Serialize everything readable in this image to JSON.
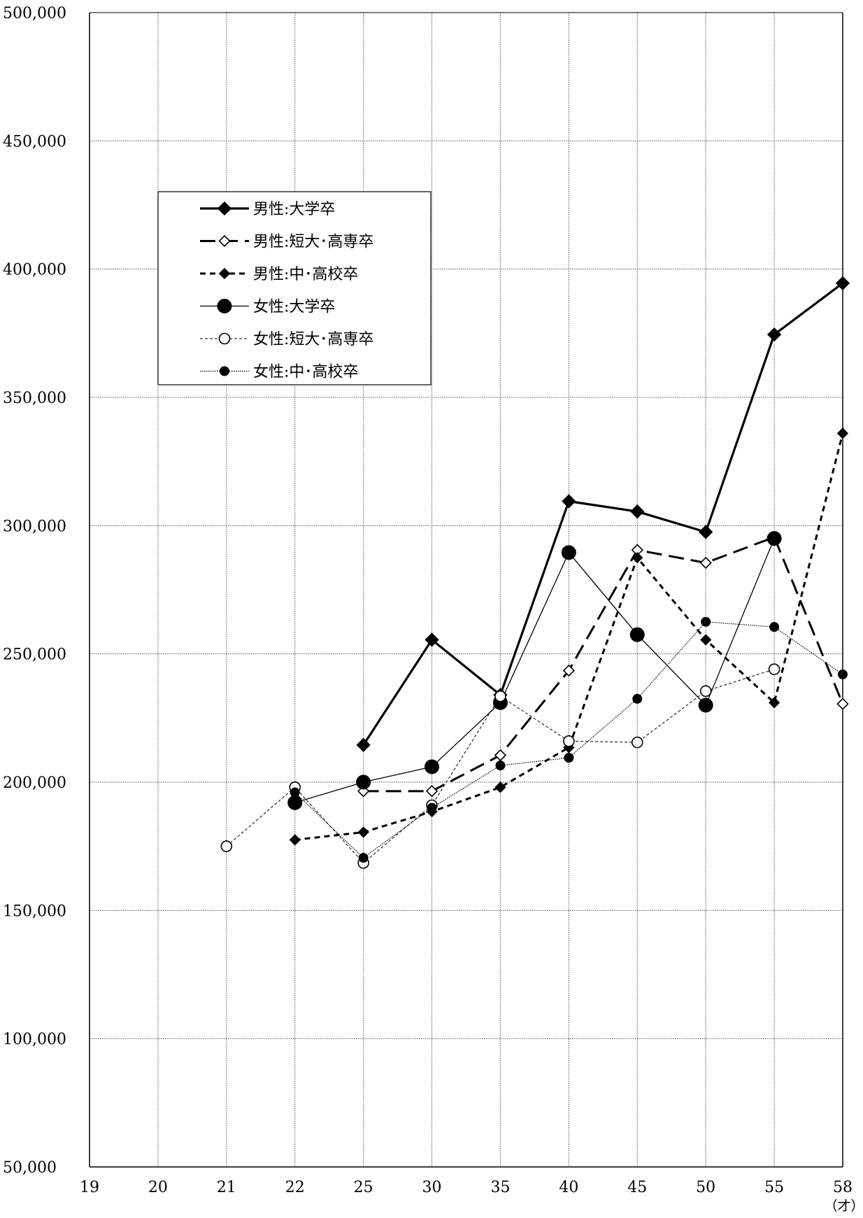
{
  "chart_data": {
    "type": "line",
    "title": "",
    "xlabel": "",
    "ylabel": "",
    "x_unit": "（才）",
    "categories": [
      "19",
      "20",
      "21",
      "22",
      "25",
      "30",
      "35",
      "40",
      "45",
      "50",
      "55",
      "58"
    ],
    "ylim": [
      50000,
      500000
    ],
    "yticks": [
      50000,
      100000,
      150000,
      200000,
      250000,
      300000,
      350000,
      400000,
      450000,
      500000
    ],
    "ytick_labels": [
      "50,000",
      "100,000",
      "150,000",
      "200,000",
      "250,000",
      "300,000",
      "350,000",
      "400,000",
      "450,000",
      "500,000"
    ],
    "grid": true,
    "legend_position": "upper-left",
    "series": [
      {
        "name": "男性:大学卒",
        "line": "solid-thick",
        "marker": "diamond-filled",
        "color": "#000000",
        "values": [
          null,
          null,
          null,
          null,
          214500,
          255500,
          234000,
          309500,
          305500,
          297500,
          374500,
          394500
        ]
      },
      {
        "name": "男性:短大･高専卒",
        "line": "long-dash",
        "marker": "diamond-open",
        "color": "#000000",
        "values": [
          null,
          null,
          null,
          null,
          196500,
          196500,
          210500,
          243500,
          290500,
          285500,
          295500,
          230500
        ]
      },
      {
        "name": "男性:中･高校卒",
        "line": "short-dash",
        "marker": "diamond-filled-small",
        "color": "#000000",
        "values": [
          null,
          null,
          null,
          177500,
          180500,
          188500,
          198000,
          213500,
          287500,
          255500,
          231000,
          336000
        ]
      },
      {
        "name": "女性:大学卒",
        "line": "solid-thin",
        "marker": "circle-filled-large",
        "color": "#000000",
        "values": [
          null,
          null,
          null,
          192000,
          200000,
          206000,
          231000,
          289500,
          257500,
          230000,
          295000,
          null
        ]
      },
      {
        "name": "女性:短大･高専卒",
        "line": "thin-dash",
        "marker": "circle-open",
        "color": "#000000",
        "values": [
          null,
          null,
          175000,
          198000,
          168500,
          191000,
          233500,
          216000,
          215500,
          235500,
          244000,
          null
        ]
      },
      {
        "name": "女性:中･高校卒",
        "line": "dotted-thin",
        "marker": "circle-filled-small",
        "color": "#000000",
        "values": [
          null,
          null,
          null,
          196000,
          170500,
          190000,
          206500,
          209500,
          232500,
          262500,
          260500,
          242000
        ]
      }
    ]
  }
}
